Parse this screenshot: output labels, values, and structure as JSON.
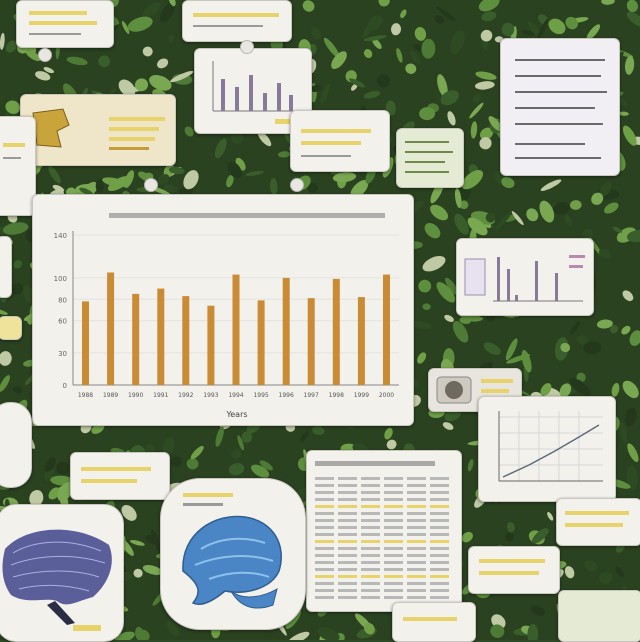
{
  "chart_data": {
    "type": "bar",
    "categories": [
      "1988",
      "1989",
      "1990",
      "1991",
      "1992",
      "1993",
      "1994",
      "1995",
      "1996",
      "1997",
      "1998",
      "1999",
      "2000"
    ],
    "values": [
      78,
      105,
      85,
      90,
      83,
      74,
      103,
      79,
      100,
      81,
      99,
      82,
      103
    ],
    "yticks": [
      "140",
      "100",
      "80",
      "60",
      "30",
      "0"
    ],
    "ylim": [
      0,
      140
    ],
    "xlabel": "Years",
    "ylabel": "",
    "title": "",
    "grid": true,
    "bar_color": "#c98b33"
  },
  "colors": {
    "card_bg": "#f3f1ec",
    "foliage_dark": "#2f4a24",
    "foliage_light": "#5e8f3e",
    "highlight": "#e8d36a",
    "bar": "#c98b33",
    "fabric_blue": "#4a86c5",
    "purple_specimen": "#5a5f9a"
  },
  "icons": {
    "sample_icon": "book-icon",
    "blue_shape": "blue-fabric-specimen-icon",
    "purple_shape": "purple-specimen-icon",
    "device": "camera-device-icon"
  }
}
